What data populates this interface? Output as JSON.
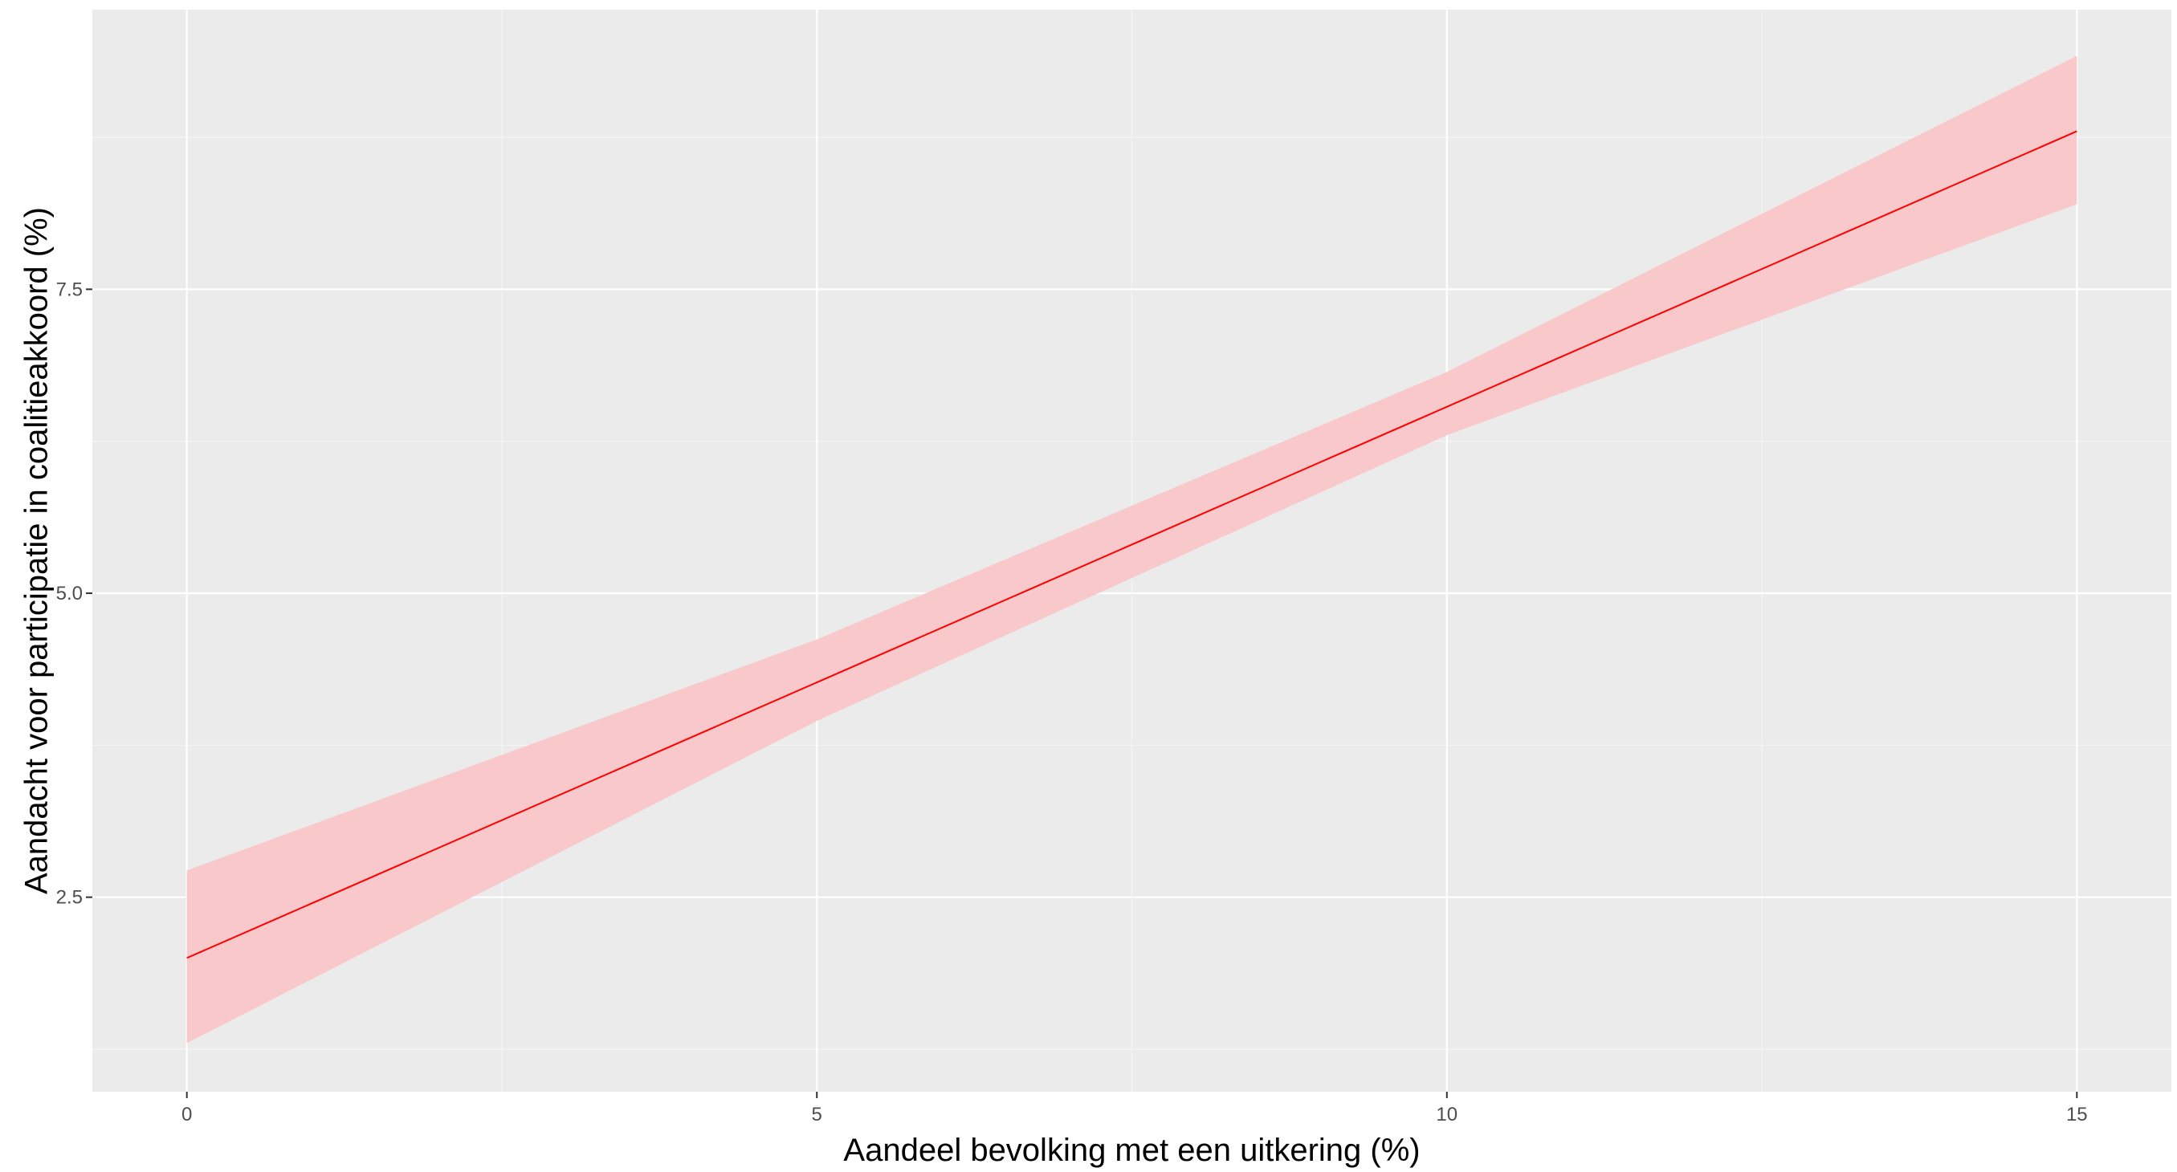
{
  "chart_data": {
    "type": "line",
    "title": "",
    "xlabel": "Aandeel bevolking met een uitkering (%)",
    "ylabel": "Aandacht voor participatie in coalitieakkoord (%)",
    "xlim": [
      -0.75,
      15.75
    ],
    "ylim": [
      0.9,
      9.8
    ],
    "x_ticks": [
      0,
      5,
      10,
      15
    ],
    "x_tick_labels": [
      "0",
      "5",
      "10",
      "15"
    ],
    "x_minor_ticks": [
      2.5,
      7.5,
      12.5
    ],
    "y_ticks": [
      2.5,
      5.0,
      7.5
    ],
    "y_tick_labels": [
      "2.5",
      "5.0",
      "7.5"
    ],
    "y_minor_ticks": [
      1.25,
      3.75,
      6.25,
      8.75
    ],
    "grid": true,
    "legend": false,
    "series": [
      {
        "x": [
          0,
          15
        ],
        "y": [
          2.0,
          8.8
        ],
        "color": "#ff0000",
        "ribbon": {
          "x": [
            0,
            5,
            10,
            15
          ],
          "lower": [
            1.3,
            3.95,
            6.3,
            8.2
          ],
          "upper": [
            2.72,
            4.62,
            6.82,
            9.42
          ],
          "color": "#f8c8ca"
        }
      }
    ],
    "colors": {
      "panel_background": "#ebebeb",
      "grid_major": "#ffffff",
      "grid_minor": "#f5f5f5",
      "tick_mark": "#333333"
    }
  }
}
